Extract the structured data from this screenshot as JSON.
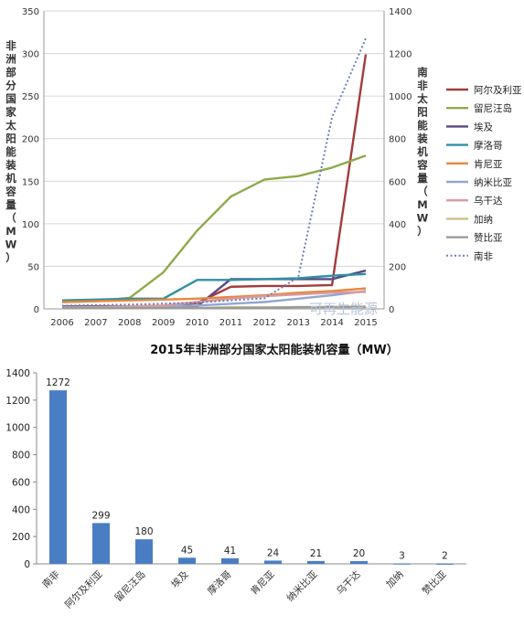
{
  "watermark": "可再生能源",
  "chart_data": [
    {
      "type": "line",
      "title": "",
      "xlabel": "",
      "ylabel": "非洲部分国家太阳能装机容量（MW）",
      "y2label": "南非太阳能装机容量（MW）",
      "x": [
        "2006",
        "2007",
        "2008",
        "2009",
        "2010",
        "2011",
        "2012",
        "2013",
        "2014",
        "2015"
      ],
      "ylim": [
        0,
        350
      ],
      "yticks": [
        0,
        50,
        100,
        150,
        200,
        250,
        300,
        350
      ],
      "y2lim": [
        0,
        1400
      ],
      "y2ticks": [
        0,
        200,
        400,
        600,
        800,
        1000,
        1200,
        1400
      ],
      "grid": true,
      "legend_position": "right",
      "series": [
        {
          "name": "阿尔及利亚",
          "color": "#a33b3b",
          "axis": "left",
          "style": "solid",
          "values": [
            2,
            2,
            3,
            3,
            7,
            26,
            27,
            27,
            28,
            299
          ]
        },
        {
          "name": "留尼汪岛",
          "color": "#8eaa4a",
          "axis": "left",
          "style": "solid",
          "values": [
            8,
            9,
            13,
            43,
            92,
            132,
            152,
            156,
            166,
            180
          ]
        },
        {
          "name": "埃及",
          "color": "#5a4785",
          "axis": "left",
          "style": "solid",
          "values": [
            3,
            3,
            3,
            3,
            3,
            35,
            35,
            35,
            35,
            45
          ]
        },
        {
          "name": "摩洛哥",
          "color": "#2f8fa3",
          "axis": "left",
          "style": "solid",
          "values": [
            10,
            11,
            12,
            12,
            34,
            34,
            35,
            36,
            39,
            41
          ]
        },
        {
          "name": "肯尼亚",
          "color": "#e8873a",
          "axis": "left",
          "style": "solid",
          "values": [
            8,
            9,
            10,
            11,
            12,
            14,
            16,
            19,
            21,
            24
          ]
        },
        {
          "name": "纳米比亚",
          "color": "#92a6cf",
          "axis": "left",
          "style": "solid",
          "values": [
            1,
            1,
            2,
            3,
            4,
            6,
            8,
            12,
            16,
            21
          ]
        },
        {
          "name": "乌干达",
          "color": "#d99aa0",
          "axis": "left",
          "style": "solid",
          "values": [
            2,
            2,
            3,
            4,
            8,
            12,
            15,
            17,
            19,
            20
          ]
        },
        {
          "name": "加纳",
          "color": "#c9c089",
          "axis": "left",
          "style": "solid",
          "values": [
            1,
            1,
            1,
            1,
            1,
            2,
            2,
            2,
            2,
            3
          ]
        },
        {
          "name": "赞比亚",
          "color": "#9a9a9a",
          "axis": "left",
          "style": "solid",
          "values": [
            1,
            1,
            1,
            1,
            1,
            1,
            1,
            2,
            2,
            2
          ]
        },
        {
          "name": "南非",
          "color": "#6d7fb8",
          "axis": "right",
          "style": "dotted",
          "values": [
            15,
            18,
            20,
            25,
            30,
            40,
            50,
            150,
            900,
            1272
          ]
        }
      ]
    },
    {
      "type": "bar",
      "title": "2015年非洲部分国家太阳能装机容量（MW）",
      "xlabel": "",
      "ylabel": "",
      "categories": [
        "南非",
        "阿尔及利亚",
        "留尼汪岛",
        "埃及",
        "摩洛哥",
        "肯尼亚",
        "纳米比亚",
        "乌干达",
        "加纳",
        "赞比亚"
      ],
      "values": [
        1272,
        299,
        180,
        45,
        41,
        24,
        21,
        20,
        3,
        2
      ],
      "data_labels": [
        "1272",
        "299",
        "180",
        "45",
        "41",
        "24",
        "21",
        "20",
        "3",
        "2"
      ],
      "ylim": [
        0,
        1400
      ],
      "yticks": [
        0,
        200,
        400,
        600,
        800,
        1000,
        1200,
        1400
      ],
      "bar_color": "#4a7ec4",
      "grid": false
    }
  ]
}
